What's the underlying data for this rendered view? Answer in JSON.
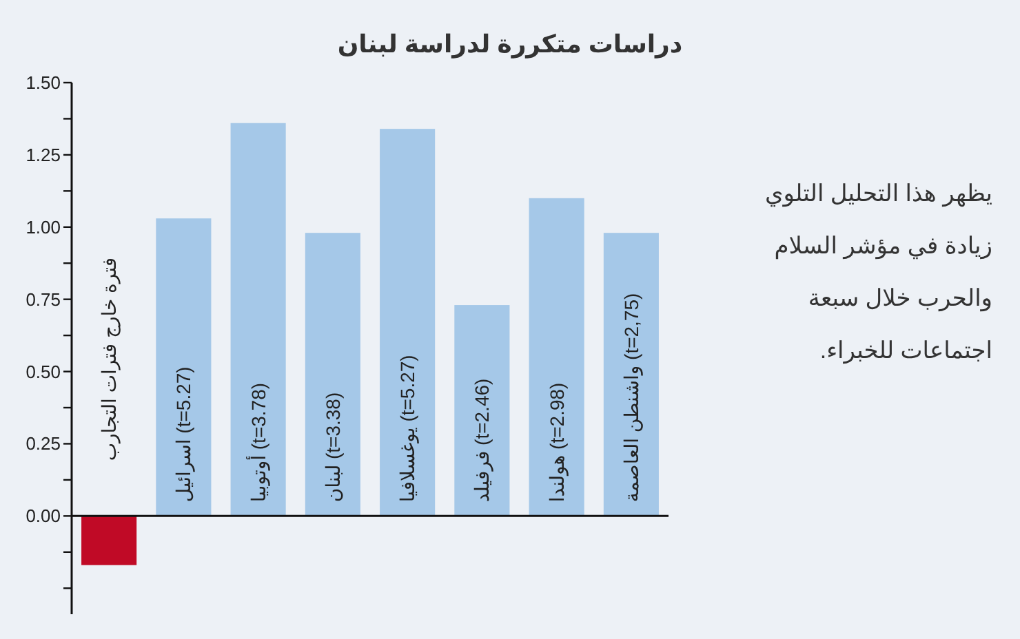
{
  "chart_data": {
    "type": "bar",
    "title": "دراسات متكررة لدراسة لبنان",
    "categories": [
      "فترة خارج فترات التجارب",
      "اسرائيل (t=5.27)",
      "أوتوبيا (t=3.78)",
      "لبنان (t=3.38)",
      "يوغسلافيا (t=5.27)",
      "فرفيلد (t=2.46)",
      "هولندا (t=2.98)",
      "واشنطن العاصمة (t=2,75)"
    ],
    "values": [
      -0.17,
      1.03,
      1.36,
      0.98,
      1.34,
      0.73,
      1.1,
      0.98
    ],
    "colors": [
      "#c00a26",
      "#a5c8e8",
      "#a5c8e8",
      "#a5c8e8",
      "#a5c8e8",
      "#a5c8e8",
      "#a5c8e8",
      "#a5c8e8"
    ],
    "ylim": [
      -0.34,
      1.5
    ],
    "yticks": [
      {
        "value": -0.25,
        "label": null
      },
      {
        "value": -0.125,
        "label": null
      },
      {
        "value": 0,
        "label": "0.00"
      },
      {
        "value": 0.125,
        "label": null
      },
      {
        "value": 0.25,
        "label": "0.25"
      },
      {
        "value": 0.375,
        "label": null
      },
      {
        "value": 0.5,
        "label": "0.50"
      },
      {
        "value": 0.625,
        "label": null
      },
      {
        "value": 0.75,
        "label": "0.75"
      },
      {
        "value": 0.875,
        "label": null
      },
      {
        "value": 1,
        "label": "1.00"
      },
      {
        "value": 1.125,
        "label": null
      },
      {
        "value": 1.25,
        "label": "1.25"
      },
      {
        "value": 1.375,
        "label": null
      },
      {
        "value": 1.5,
        "label": "1.50"
      }
    ],
    "annotations": [
      "يظهر هذا التحليل التلوي زيادة في مؤشر السلام والحرب خلال سبعة اجتماعات للخبراء."
    ]
  }
}
